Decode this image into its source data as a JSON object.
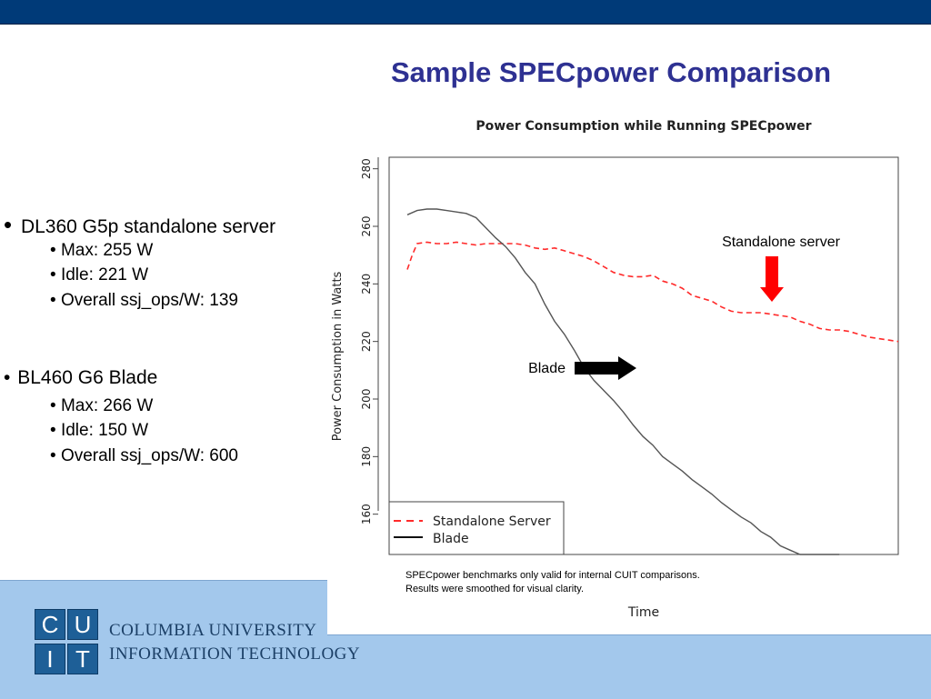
{
  "slide": {
    "title": "Sample SPECpower Comparison"
  },
  "colors": {
    "topbar": "#003a78",
    "title": "#2e3192",
    "footer": "#a3c8ec",
    "standalone": "#ff2a2a",
    "blade": "#555555"
  },
  "bullets": [
    {
      "label": "DL360 G5p standalone server",
      "items": [
        "Max: 255 W",
        "Idle: 221 W",
        "Overall ssj_ops/W: 139"
      ]
    },
    {
      "label": "BL460 G6 Blade",
      "items": [
        "Max: 266 W",
        "Idle: 150 W",
        "Overall ssj_ops/W: 600"
      ]
    }
  ],
  "notes": {
    "line1": "SPECpower benchmarks only valid for internal CUIT comparisons.",
    "line2": "Results were smoothed for visual clarity."
  },
  "footer": {
    "logo_letters": [
      "C",
      "U",
      "I",
      "T"
    ],
    "org_line1": "COLUMBIA UNIVERSITY",
    "org_line2": "INFORMATION TECHNOLOGY"
  },
  "chart_data": {
    "type": "line",
    "title": "Power Consumption while Running SPECpower",
    "xlabel": "Time",
    "ylabel": "Power Consumption in Watts",
    "ylim": [
      146,
      284
    ],
    "yticks": [
      160,
      180,
      200,
      220,
      240,
      260,
      280
    ],
    "grid": false,
    "legend_position": "bottom-left",
    "annotations": [
      {
        "text": "Standalone server",
        "series": "Standalone Server"
      },
      {
        "text": "Blade",
        "series": "Blade"
      }
    ],
    "series": [
      {
        "name": "Standalone Server",
        "color": "#ff2a2a",
        "dash": true,
        "x": [
          0,
          1,
          2,
          4,
          6,
          8,
          10,
          12,
          14,
          16,
          18,
          20,
          22,
          24,
          26,
          28,
          30,
          32,
          34,
          36,
          38,
          40,
          42,
          44,
          46,
          48,
          50,
          52,
          54,
          56,
          58,
          60,
          62,
          64,
          66,
          68,
          70,
          72,
          74,
          76,
          78,
          80,
          82,
          84,
          86,
          88,
          90,
          92,
          94,
          96,
          98,
          100
        ],
        "values": [
          245,
          250,
          254,
          254.5,
          254,
          254,
          254.5,
          254,
          253.5,
          254,
          254,
          254,
          254,
          253.5,
          252.5,
          252,
          252.5,
          251.5,
          250.5,
          249.5,
          248,
          246,
          244,
          243,
          242.5,
          242.5,
          243,
          241,
          240,
          238.5,
          236,
          235,
          234,
          232,
          230.5,
          230,
          230,
          230,
          229.5,
          229,
          228.5,
          227,
          226,
          224.5,
          224,
          224,
          223.5,
          222.5,
          221.5,
          221,
          220.5,
          220
        ]
      },
      {
        "name": "Blade",
        "color": "#555555",
        "dash": false,
        "x": [
          0,
          2,
          4,
          6,
          8,
          10,
          12,
          14,
          16,
          18,
          20,
          22,
          24,
          26,
          28,
          30,
          32,
          34,
          36,
          38,
          40,
          42,
          44,
          46,
          48,
          50,
          52,
          54,
          56,
          58,
          60,
          62,
          64,
          66,
          68,
          70,
          72,
          74,
          76,
          78,
          80,
          82,
          84,
          86,
          88
        ],
        "values": [
          264,
          265.5,
          266,
          266,
          265.5,
          265,
          264.5,
          263,
          259.5,
          256,
          253,
          249,
          244,
          240,
          233,
          227,
          222.5,
          217,
          211,
          206.5,
          203,
          199.5,
          195.5,
          191,
          187,
          184,
          180,
          177.5,
          175,
          172,
          169.5,
          167,
          164,
          161.5,
          159,
          157,
          154,
          152,
          149,
          147.5,
          146,
          146,
          146,
          146,
          146
        ]
      }
    ]
  }
}
